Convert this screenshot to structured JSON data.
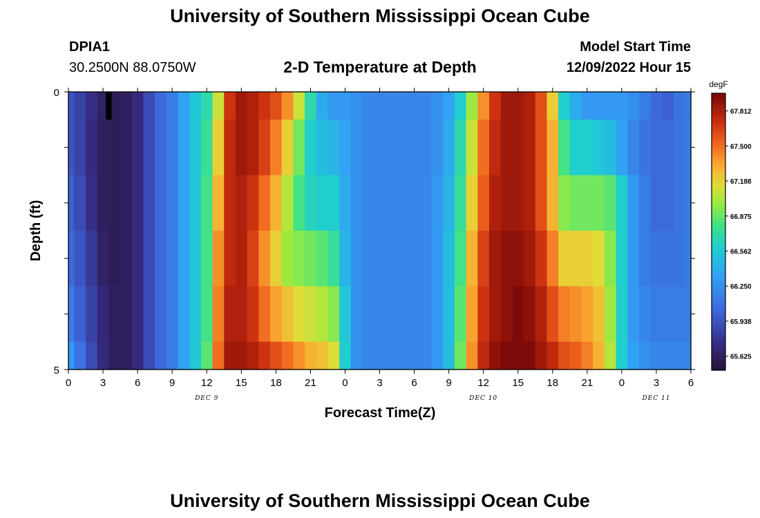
{
  "header": {
    "title": "University of Southern Mississippi Ocean Cube",
    "station_id": "DPIA1",
    "coordinates": "30.2500N  88.0750W",
    "plot_title": "2-D Temperature at Depth",
    "model_start_label": "Model Start Time",
    "model_start_value": "12/09/2022 Hour 15"
  },
  "footer": {
    "title": "University of Southern Mississippi Ocean Cube"
  },
  "chart_data": {
    "type": "heatmap",
    "title": "2-D Temperature at Depth",
    "xlabel": "Forecast Time(Z)",
    "ylabel": "Depth (ft)",
    "x_tick_labels": [
      "0",
      "3",
      "6",
      "9",
      "12",
      "15",
      "18",
      "21",
      "0",
      "3",
      "6",
      "9",
      "12",
      "15",
      "18",
      "21",
      "0",
      "3",
      "6"
    ],
    "x_date_labels": [
      "DEC 9",
      "DEC 10",
      "DEC 11"
    ],
    "y_tick_labels": [
      "0",
      "5"
    ],
    "ylim": [
      0,
      5
    ],
    "xlim_hours": [
      0,
      54
    ],
    "depth_levels_ft": [
      0,
      0.5,
      1.5,
      2.5,
      3.5,
      4.5,
      5
    ],
    "colorbar": {
      "unit": "degF",
      "ticks": [
        "67.812",
        "67.500",
        "67.188",
        "66.875",
        "66.562",
        "66.250",
        "65.938",
        "65.625"
      ],
      "range": [
        65.5,
        67.97
      ]
    },
    "temperature_rows": [
      {
        "depth_range_ft": [
          0,
          0.5
        ],
        "hours": [
          0,
          1,
          2,
          3,
          4,
          5,
          6,
          7,
          8,
          9,
          10,
          11,
          12,
          13,
          14,
          15,
          16,
          17,
          18,
          19,
          20,
          21,
          22,
          23,
          24,
          25,
          26,
          27,
          28,
          29,
          30,
          31,
          32,
          33,
          34,
          35,
          36,
          37,
          38,
          39,
          40,
          41,
          42,
          43,
          44,
          45,
          46,
          47,
          48,
          49,
          50,
          51,
          52,
          53,
          54
        ],
        "values": [
          65.95,
          65.85,
          65.75,
          65.65,
          65.6,
          65.62,
          65.72,
          65.9,
          66.05,
          66.15,
          66.35,
          66.55,
          66.7,
          67.1,
          67.7,
          67.85,
          67.8,
          67.7,
          67.6,
          67.4,
          67.1,
          66.7,
          66.4,
          66.3,
          66.3,
          66.25,
          66.2,
          66.2,
          66.2,
          66.2,
          66.2,
          66.2,
          66.25,
          66.35,
          66.6,
          67.0,
          67.4,
          67.7,
          67.85,
          67.85,
          67.8,
          67.6,
          67.2,
          66.6,
          66.4,
          66.3,
          66.3,
          66.3,
          66.3,
          66.25,
          66.15,
          66.05,
          66.0,
          66.1,
          66.15
        ]
      },
      {
        "depth_range_ft": [
          0.5,
          1.5
        ],
        "hours": [
          0,
          1,
          2,
          3,
          4,
          5,
          6,
          7,
          8,
          9,
          10,
          11,
          12,
          13,
          14,
          15,
          16,
          17,
          18,
          19,
          20,
          21,
          22,
          23,
          24,
          25,
          26,
          27,
          28,
          29,
          30,
          31,
          32,
          33,
          34,
          35,
          36,
          37,
          38,
          39,
          40,
          41,
          42,
          43,
          44,
          45,
          46,
          47,
          48,
          49,
          50,
          51,
          52,
          53,
          54
        ],
        "values": [
          65.95,
          65.85,
          65.72,
          65.62,
          65.6,
          65.62,
          65.72,
          65.9,
          66.05,
          66.15,
          66.35,
          66.55,
          66.75,
          67.2,
          67.75,
          67.85,
          67.8,
          67.65,
          67.45,
          67.2,
          66.9,
          66.6,
          66.5,
          66.45,
          66.35,
          66.25,
          66.2,
          66.2,
          66.2,
          66.2,
          66.2,
          66.2,
          66.25,
          66.4,
          66.7,
          67.1,
          67.5,
          67.75,
          67.85,
          67.85,
          67.8,
          67.6,
          67.3,
          66.8,
          66.6,
          66.6,
          66.55,
          66.5,
          66.35,
          66.2,
          66.1,
          66.05,
          66.05,
          66.1,
          66.15
        ]
      },
      {
        "depth_range_ft": [
          1.5,
          2.5
        ],
        "hours": [
          0,
          1,
          2,
          3,
          4,
          5,
          6,
          7,
          8,
          9,
          10,
          11,
          12,
          13,
          14,
          15,
          16,
          17,
          18,
          19,
          20,
          21,
          22,
          23,
          24,
          25,
          26,
          27,
          28,
          29,
          30,
          31,
          32,
          33,
          34,
          35,
          36,
          37,
          38,
          39,
          40,
          41,
          42,
          43,
          44,
          45,
          46,
          47,
          48,
          49,
          50,
          51,
          52,
          53,
          54
        ],
        "values": [
          66.0,
          65.9,
          65.75,
          65.62,
          65.6,
          65.62,
          65.72,
          65.9,
          66.05,
          66.15,
          66.35,
          66.55,
          66.8,
          67.3,
          67.75,
          67.8,
          67.7,
          67.5,
          67.3,
          67.05,
          66.8,
          66.65,
          66.6,
          66.6,
          66.4,
          66.25,
          66.2,
          66.2,
          66.2,
          66.2,
          66.2,
          66.2,
          66.3,
          66.45,
          66.75,
          67.2,
          67.55,
          67.8,
          67.85,
          67.85,
          67.8,
          67.6,
          67.3,
          66.95,
          66.9,
          66.9,
          66.9,
          66.85,
          66.6,
          66.3,
          66.15,
          66.05,
          66.05,
          66.1,
          66.15
        ]
      },
      {
        "depth_range_ft": [
          2.5,
          3.5
        ],
        "hours": [
          0,
          1,
          2,
          3,
          4,
          5,
          6,
          7,
          8,
          9,
          10,
          11,
          12,
          13,
          14,
          15,
          16,
          17,
          18,
          19,
          20,
          21,
          22,
          23,
          24,
          25,
          26,
          27,
          28,
          29,
          30,
          31,
          32,
          33,
          34,
          35,
          36,
          37,
          38,
          39,
          40,
          41,
          42,
          43,
          44,
          45,
          46,
          47,
          48,
          49,
          50,
          51,
          52,
          53,
          54
        ],
        "values": [
          66.05,
          65.95,
          65.8,
          65.65,
          65.6,
          65.62,
          65.72,
          65.9,
          66.05,
          66.15,
          66.35,
          66.55,
          66.8,
          67.4,
          67.75,
          67.8,
          67.65,
          67.4,
          67.2,
          67.0,
          66.95,
          66.9,
          66.85,
          66.75,
          66.45,
          66.25,
          66.2,
          66.2,
          66.2,
          66.2,
          66.2,
          66.2,
          66.3,
          66.5,
          66.8,
          67.3,
          67.65,
          67.85,
          67.9,
          67.9,
          67.85,
          67.7,
          67.45,
          67.2,
          67.2,
          67.2,
          67.15,
          66.95,
          66.6,
          66.3,
          66.15,
          66.1,
          66.1,
          66.1,
          66.15
        ]
      },
      {
        "depth_range_ft": [
          3.5,
          4.5
        ],
        "hours": [
          0,
          1,
          2,
          3,
          4,
          5,
          6,
          7,
          8,
          9,
          10,
          11,
          12,
          13,
          14,
          15,
          16,
          17,
          18,
          19,
          20,
          21,
          22,
          23,
          24,
          25,
          26,
          27,
          28,
          29,
          30,
          31,
          32,
          33,
          34,
          35,
          36,
          37,
          38,
          39,
          40,
          41,
          42,
          43,
          44,
          45,
          46,
          47,
          48,
          49,
          50,
          51,
          52,
          53,
          54
        ],
        "values": [
          66.15,
          66.0,
          65.85,
          65.7,
          65.62,
          65.62,
          65.72,
          65.9,
          66.05,
          66.15,
          66.35,
          66.55,
          66.8,
          67.45,
          67.8,
          67.8,
          67.7,
          67.5,
          67.35,
          67.25,
          67.15,
          67.1,
          67.05,
          66.95,
          66.55,
          66.25,
          66.2,
          66.2,
          66.2,
          66.2,
          66.2,
          66.2,
          66.3,
          66.5,
          66.85,
          67.35,
          67.7,
          67.85,
          67.9,
          67.95,
          67.9,
          67.8,
          67.6,
          67.45,
          67.4,
          67.35,
          67.25,
          67.0,
          66.6,
          66.3,
          66.2,
          66.15,
          66.15,
          66.15,
          66.15
        ]
      },
      {
        "depth_range_ft": [
          4.5,
          5
        ],
        "hours": [
          0,
          1,
          2,
          3,
          4,
          5,
          6,
          7,
          8,
          9,
          10,
          11,
          12,
          13,
          14,
          15,
          16,
          17,
          18,
          19,
          20,
          21,
          22,
          23,
          24,
          25,
          26,
          27,
          28,
          29,
          30,
          31,
          32,
          33,
          34,
          35,
          36,
          37,
          38,
          39,
          40,
          41,
          42,
          43,
          44,
          45,
          46,
          47,
          48,
          49,
          50,
          51,
          52,
          53,
          54
        ],
        "values": [
          66.3,
          66.1,
          65.9,
          65.72,
          65.62,
          65.62,
          65.72,
          65.9,
          66.05,
          66.15,
          66.35,
          66.55,
          66.85,
          67.5,
          67.85,
          67.85,
          67.8,
          67.7,
          67.6,
          67.5,
          67.4,
          67.3,
          67.25,
          67.15,
          66.6,
          66.25,
          66.2,
          66.2,
          66.2,
          66.2,
          66.2,
          66.2,
          66.3,
          66.5,
          66.9,
          67.4,
          67.75,
          67.9,
          67.95,
          67.95,
          67.95,
          67.85,
          67.75,
          67.6,
          67.55,
          67.45,
          67.3,
          67.05,
          66.6,
          66.35,
          66.25,
          66.2,
          66.2,
          66.2,
          66.2
        ]
      }
    ],
    "colors": {
      "frame": "#000000",
      "missing_cell": "#000000"
    }
  }
}
